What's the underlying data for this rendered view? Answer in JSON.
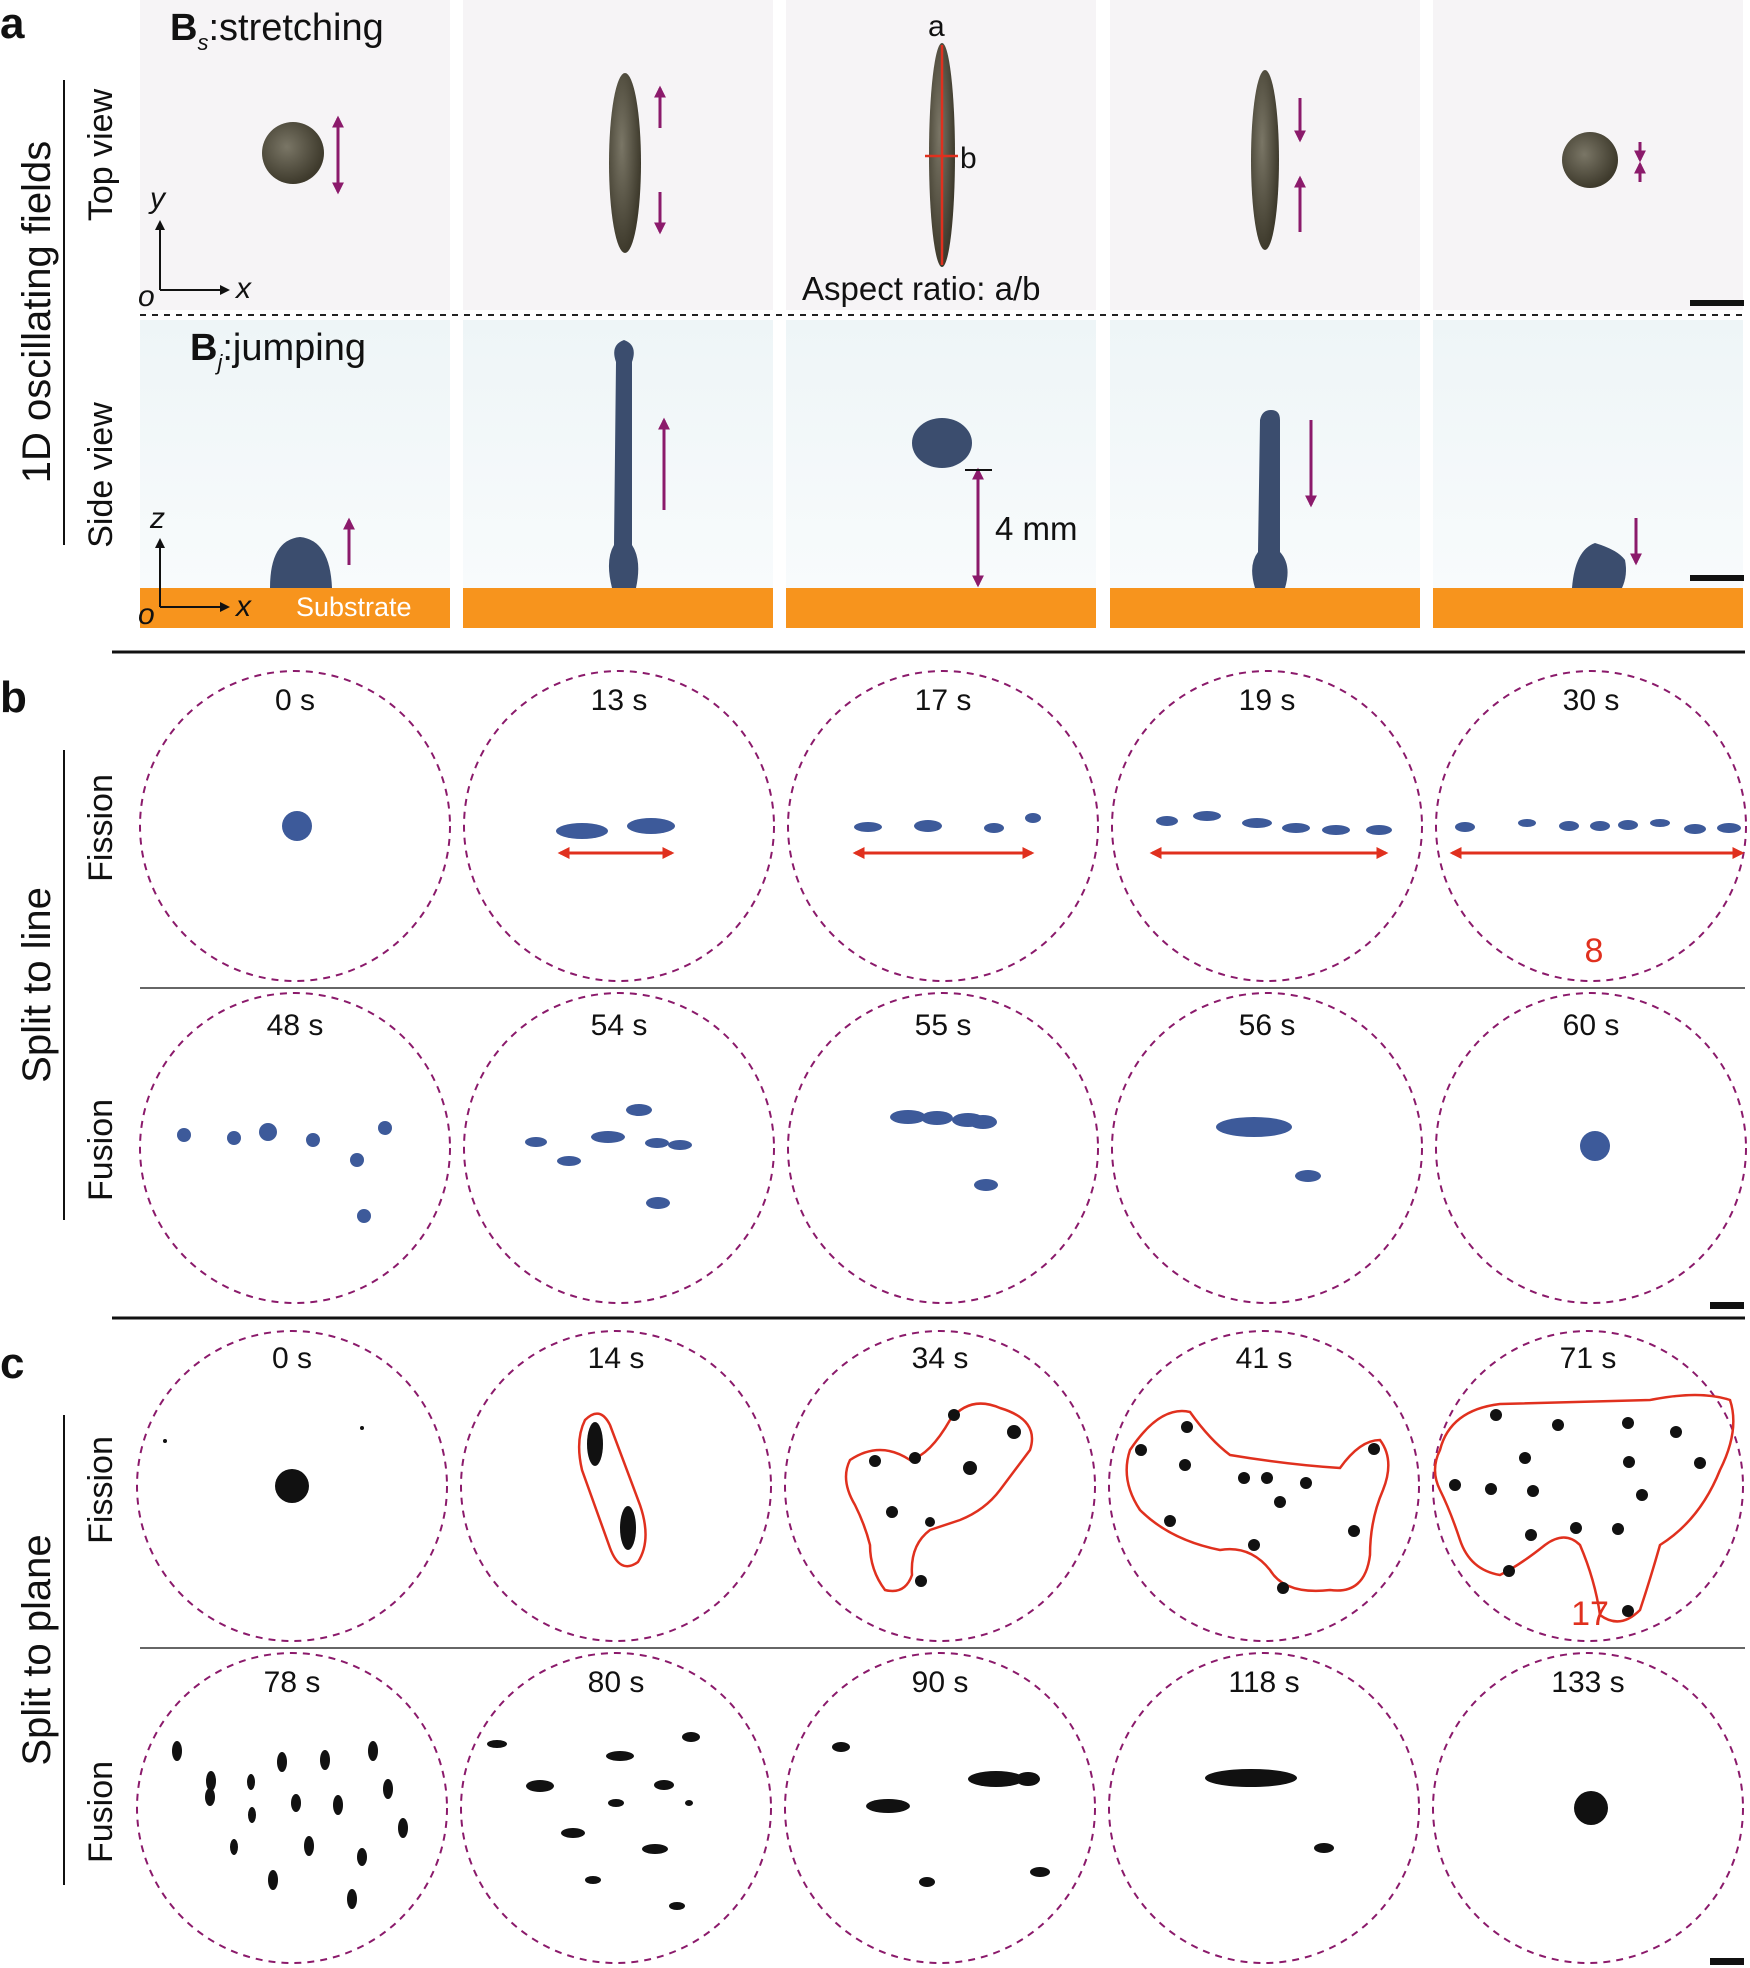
{
  "panel_a": {
    "label": "a",
    "stretch_title_main": "B",
    "stretch_title_sub": "s",
    "stretch_title_rest": ":stretching",
    "jump_title_main": "B",
    "jump_title_sub": "j",
    "jump_title_rest": ":jumping",
    "group_label": "1D oscillating fields",
    "top_view_label": "Top view",
    "side_view_label": "Side view",
    "axis_y": "y",
    "axis_x": "x",
    "axis_z": "z",
    "axis_origin": "o",
    "label_a": "a",
    "label_b": "b",
    "aspect_ratio": "Aspect ratio: a/b",
    "height_label": "4 mm",
    "substrate": "Substrate"
  },
  "panel_b": {
    "label": "b",
    "group_label": "Split to line",
    "fission_label": "Fission",
    "fusion_label": "Fusion",
    "fission_times": [
      "0 s",
      "13 s",
      "17 s",
      "19 s",
      "30 s"
    ],
    "fusion_times": [
      "48 s",
      "54 s",
      "55 s",
      "56 s",
      "60 s"
    ],
    "count": "8"
  },
  "panel_c": {
    "label": "c",
    "group_label": "Split to plane",
    "fission_label": "Fission",
    "fusion_label": "Fusion",
    "fission_times": [
      "0 s",
      "14 s",
      "34 s",
      "41 s",
      "71 s"
    ],
    "fusion_times": [
      "78 s",
      "80 s",
      "90 s",
      "118 s",
      "133 s"
    ],
    "count": "17"
  },
  "colors": {
    "arrow_magenta": "#8b1a6b",
    "arrow_red": "#e0301e",
    "substrate": "#f7941d",
    "droplet_blue": "#3d5a9a",
    "droplet_black": "#111111"
  }
}
